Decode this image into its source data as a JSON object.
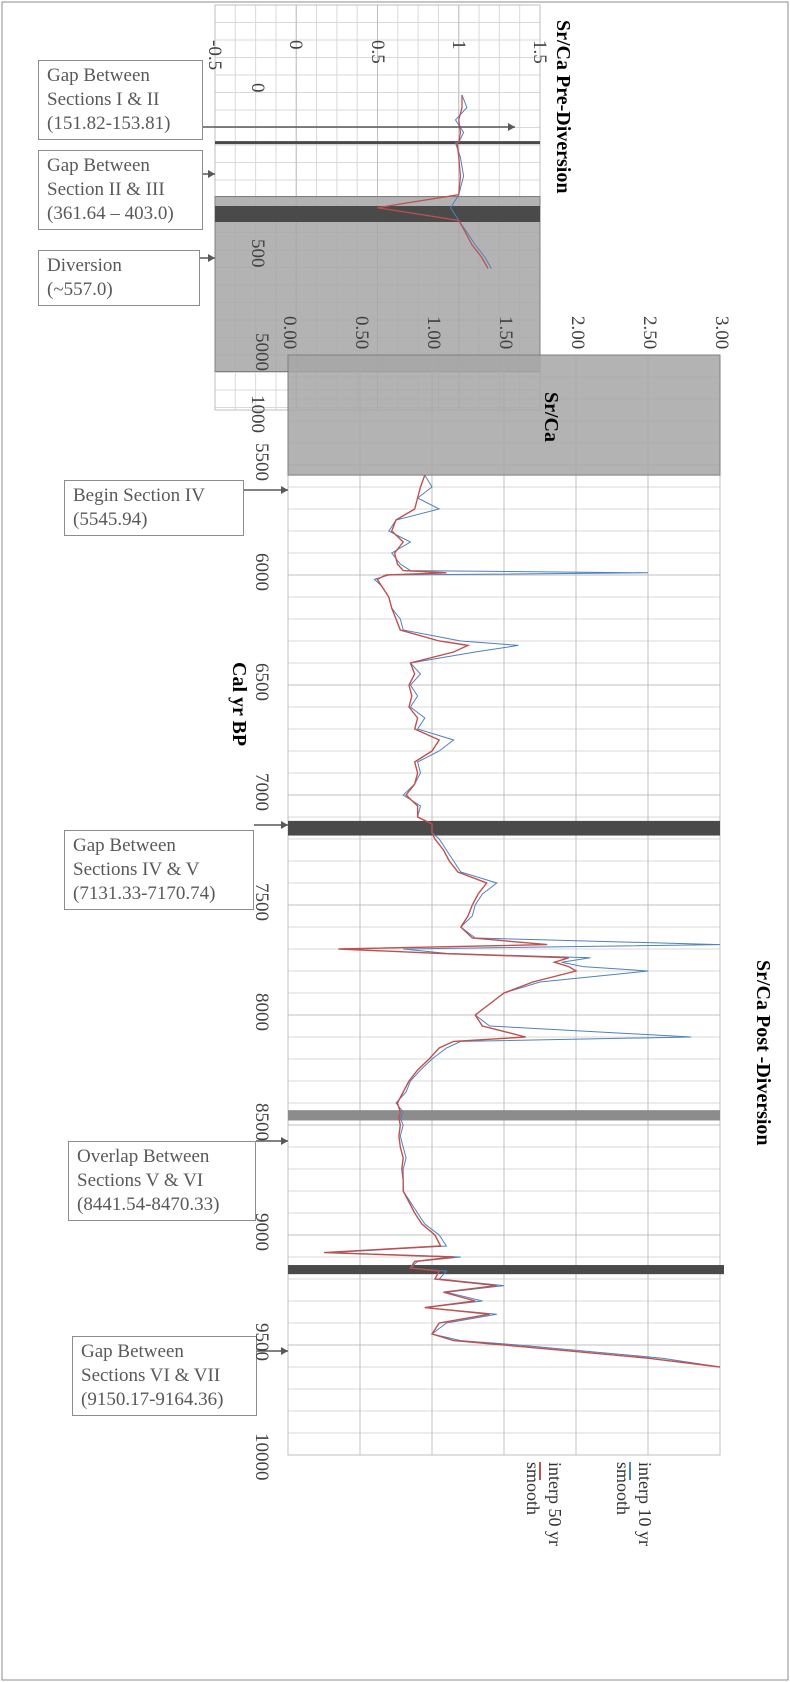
{
  "chart_data": [
    {
      "type": "line",
      "title": "Sr/Ca Pre-Diversion",
      "xlabel": "",
      "ylabel": "",
      "ylim": [
        -0.5,
        1.5
      ],
      "y_ticks": [
        "-0.5",
        "0",
        "0.5",
        "1",
        "1.5"
      ],
      "x_ticks": [
        "0",
        "500",
        "1000"
      ],
      "series": [
        {
          "name": "",
          "color": "#4f81bd",
          "x": [
            0,
            40,
            80,
            120,
            151.82,
            153.81,
            200,
            260,
            320,
            361.64,
            403.0,
            440,
            480,
            520,
            557.0
          ],
          "y": [
            1.02,
            1.05,
            0.98,
            1.03,
            1.0,
            0.98,
            1.01,
            1.03,
            1.0,
            0.95,
            1.0,
            1.05,
            1.1,
            1.16,
            1.2
          ]
        },
        {
          "name": "",
          "color": "#c0504d",
          "x": [
            0,
            40,
            80,
            120,
            151.82,
            153.81,
            200,
            260,
            320,
            361.64,
            403.0,
            440,
            480,
            520,
            557.0
          ],
          "y": [
            1.02,
            1.02,
            1.0,
            1.01,
            1.0,
            0.99,
            1.0,
            1.01,
            1.0,
            0.5,
            1.0,
            1.04,
            1.08,
            1.14,
            1.18
          ]
        }
      ]
    },
    {
      "type": "line",
      "title": "Sr/Ca Post -Diversion",
      "subtitle": "Sr/Ca",
      "xlabel": "Cal yr BP",
      "ylabel": "",
      "xlim": [
        5000,
        10000
      ],
      "ylim": [
        0,
        3
      ],
      "x_ticks": [
        "5000",
        "5500",
        "6000",
        "6500",
        "7000",
        "7500",
        "8000",
        "8500",
        "9000",
        "9500",
        "10000"
      ],
      "y_ticks": [
        "0.00",
        "0.50",
        "1.00",
        "1.50",
        "2.00",
        "2.50",
        "3.00"
      ],
      "legend": [
        "interp 10 yr smooth",
        "interp 50 yr smooth"
      ],
      "legend_position": "bottom-right",
      "series": [
        {
          "name": "interp 10 yr smooth",
          "color": "#4f81bd",
          "x": [
            5545.94,
            5600,
            5650,
            5700,
            5750,
            5800,
            5850,
            5900,
            5950,
            5980,
            5990,
            6000,
            6020,
            6050,
            6100,
            6150,
            6200,
            6250,
            6300,
            6320,
            6350,
            6400,
            6450,
            6500,
            6550,
            6600,
            6650,
            6700,
            6750,
            6800,
            6850,
            6900,
            6950,
            7000,
            7050,
            7100,
            7131.33,
            7170.74,
            7200,
            7250,
            7300,
            7350,
            7400,
            7450,
            7500,
            7550,
            7600,
            7650,
            7680,
            7700,
            7720,
            7740,
            7760,
            7780,
            7800,
            7850,
            7900,
            7950,
            8000,
            8050,
            8100,
            8120,
            8150,
            8200,
            8250,
            8300,
            8350,
            8400,
            8441.54,
            8470.33,
            8500,
            8550,
            8600,
            8650,
            8700,
            8750,
            8800,
            8850,
            8900,
            8950,
            9000,
            9050,
            9080,
            9100,
            9120,
            9150.17,
            9164.36,
            9200,
            9230,
            9260,
            9300,
            9330,
            9360,
            9400,
            9450,
            9480,
            9500,
            9530,
            9560,
            9600
          ],
          "y": [
            0.95,
            1.0,
            0.9,
            1.05,
            0.75,
            0.7,
            0.85,
            0.72,
            0.78,
            0.85,
            2.5,
            0.7,
            0.6,
            0.65,
            0.7,
            0.72,
            0.78,
            0.8,
            1.2,
            1.6,
            1.3,
            0.85,
            0.92,
            0.85,
            0.9,
            0.85,
            0.95,
            0.9,
            1.15,
            1.05,
            0.9,
            0.92,
            0.88,
            0.8,
            0.92,
            0.9,
            1.0,
            1.0,
            1.05,
            1.1,
            1.15,
            1.2,
            1.45,
            1.35,
            1.3,
            1.28,
            1.2,
            1.3,
            3.0,
            0.8,
            1.1,
            2.1,
            1.9,
            2.05,
            2.5,
            1.75,
            1.5,
            1.4,
            1.3,
            1.4,
            2.8,
            1.2,
            1.1,
            1.0,
            0.92,
            0.85,
            0.82,
            0.75,
            0.8,
            0.78,
            0.8,
            0.78,
            0.8,
            0.82,
            0.8,
            0.8,
            0.8,
            0.85,
            0.9,
            0.95,
            1.05,
            1.1,
            0.3,
            1.2,
            0.9,
            0.85,
            1.1,
            1.05,
            1.5,
            1.1,
            1.35,
            0.95,
            1.45,
            1.1,
            1.0,
            1.2,
            1.6,
            2.1,
            2.6,
            3.0
          ]
        },
        {
          "name": "interp 50 yr smooth",
          "color": "#c0504d",
          "x": [
            5545.94,
            5600,
            5650,
            5700,
            5750,
            5800,
            5850,
            5900,
            5950,
            5980,
            5990,
            6000,
            6020,
            6050,
            6100,
            6150,
            6200,
            6250,
            6300,
            6320,
            6350,
            6400,
            6450,
            6500,
            6550,
            6600,
            6650,
            6700,
            6750,
            6800,
            6850,
            6900,
            6950,
            7000,
            7050,
            7100,
            7131.33,
            7170.74,
            7200,
            7250,
            7300,
            7350,
            7400,
            7450,
            7500,
            7550,
            7600,
            7650,
            7680,
            7700,
            7720,
            7740,
            7760,
            7780,
            7800,
            7850,
            7900,
            7950,
            8000,
            8050,
            8100,
            8120,
            8150,
            8200,
            8250,
            8300,
            8350,
            8400,
            8441.54,
            8470.33,
            8500,
            8550,
            8600,
            8650,
            8700,
            8750,
            8800,
            8850,
            8900,
            8950,
            9000,
            9050,
            9080,
            9100,
            9120,
            9150.17,
            9164.36,
            9200,
            9230,
            9260,
            9300,
            9330,
            9360,
            9400,
            9450,
            9480,
            9500,
            9530,
            9560,
            9600
          ],
          "y": [
            0.95,
            0.92,
            0.9,
            0.88,
            0.75,
            0.72,
            0.8,
            0.74,
            0.76,
            0.8,
            1.1,
            0.68,
            0.62,
            0.65,
            0.7,
            0.72,
            0.75,
            0.78,
            1.05,
            1.25,
            1.15,
            0.85,
            0.88,
            0.84,
            0.86,
            0.84,
            0.9,
            0.88,
            1.05,
            1.0,
            0.88,
            0.9,
            0.88,
            0.82,
            0.9,
            0.9,
            1.0,
            1.0,
            1.02,
            1.08,
            1.12,
            1.18,
            1.38,
            1.32,
            1.28,
            1.25,
            1.2,
            1.28,
            1.8,
            0.35,
            1.05,
            1.95,
            1.85,
            1.95,
            2.0,
            1.7,
            1.5,
            1.4,
            1.3,
            1.35,
            1.65,
            1.15,
            1.05,
            0.98,
            0.9,
            0.84,
            0.8,
            0.76,
            0.78,
            0.77,
            0.78,
            0.77,
            0.78,
            0.8,
            0.79,
            0.8,
            0.8,
            0.84,
            0.88,
            0.93,
            1.02,
            1.06,
            0.25,
            1.15,
            0.88,
            0.85,
            1.05,
            1.02,
            1.45,
            1.08,
            1.3,
            0.95,
            1.4,
            1.05,
            1.0,
            1.15,
            1.5,
            2.0,
            2.5,
            3.0
          ]
        }
      ]
    }
  ],
  "annotations": [
    {
      "id": "gap-1-2",
      "lines": [
        "Gap Between",
        "Sections I & II",
        "(151.82-153.81)"
      ]
    },
    {
      "id": "gap-2-3",
      "lines": [
        "Gap Between",
        "Section  II & III",
        "(361.64 – 403.0)"
      ]
    },
    {
      "id": "diversion",
      "lines": [
        "Diversion",
        "(~557.0)"
      ]
    },
    {
      "id": "begin-4",
      "lines": [
        "Begin Section IV",
        "(5545.94)"
      ]
    },
    {
      "id": "gap-4-5",
      "lines": [
        "Gap Between",
        "Sections IV & V",
        "(7131.33-7170.74)"
      ]
    },
    {
      "id": "overlap-5-6",
      "lines": [
        "Overlap Between",
        "Sections V & VI",
        "(8441.54-8470.33)"
      ]
    },
    {
      "id": "gap-6-7",
      "lines": [
        "Gap Between",
        "Sections VI & VII",
        "(9150.17-9164.36)"
      ]
    }
  ],
  "colors": {
    "series_10yr": "#4f81bd",
    "series_50yr": "#c0504d",
    "gap_band": "#4a4a4a",
    "shade_band": "#a6a6a6",
    "grid": "#bfbfbf"
  }
}
